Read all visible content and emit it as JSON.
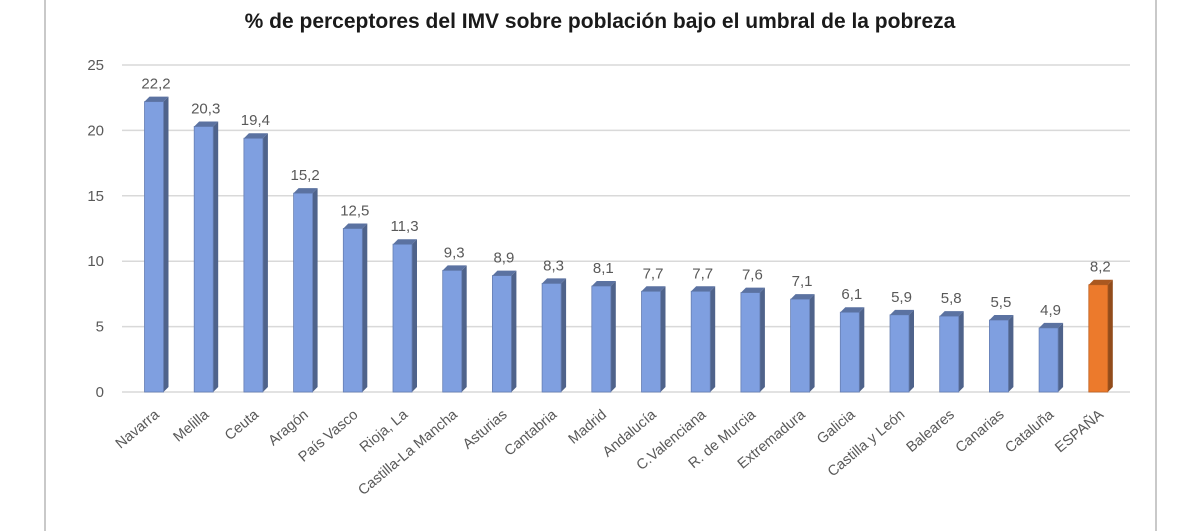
{
  "chart_data": {
    "type": "bar",
    "title": "% de perceptores del IMV sobre población bajo el umbral de la pobreza",
    "categories": [
      "Navarra",
      "Melilla",
      "Ceuta",
      "Aragón",
      "País Vasco",
      "Rioja, La",
      "Castilla-La Mancha",
      "Asturias",
      "Cantabria",
      "Madrid",
      "Andalucía",
      "C.Valenciana",
      "R. de Murcia",
      "Extremadura",
      "Galicia",
      "Castilla y León",
      "Baleares",
      "Canarias",
      "Cataluña",
      "ESPAÑA"
    ],
    "values": [
      22.2,
      20.3,
      19.4,
      15.2,
      12.5,
      11.3,
      9.3,
      8.9,
      8.3,
      8.1,
      7.7,
      7.7,
      7.6,
      7.1,
      6.1,
      5.9,
      5.8,
      5.5,
      4.9,
      8.2
    ],
    "data_labels": [
      "22,2",
      "20,3",
      "19,4",
      "15,2",
      "12,5",
      "11,3",
      "9,3",
      "8,9",
      "8,3",
      "8,1",
      "7,7",
      "7,7",
      "7,6",
      "7,1",
      "6,1",
      "5,9",
      "5,8",
      "5,5",
      "4,9",
      "8,2"
    ],
    "yticks": [
      "0",
      "5",
      "10",
      "15",
      "20",
      "25"
    ],
    "ylim": [
      0,
      25
    ],
    "grid": true,
    "colors": {
      "bar": "#7f9fe0",
      "highlight": "#ec7a2c",
      "grid": "#d9d9d9"
    },
    "highlight_category": "ESPAÑA"
  }
}
